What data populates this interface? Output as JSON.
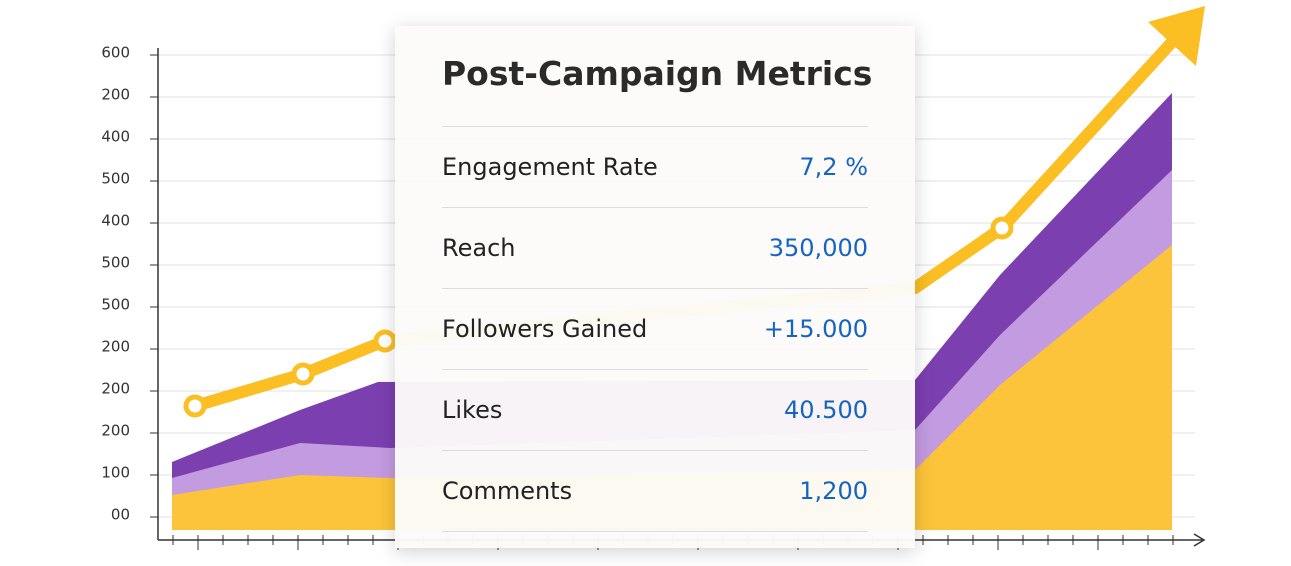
{
  "axis": {
    "y_labels": [
      "600",
      "200",
      "400",
      "500",
      "400",
      "500",
      "500",
      "200",
      "200",
      "200",
      "100",
      "00"
    ]
  },
  "card": {
    "title": "Post-Campaign Metrics",
    "rows": [
      {
        "label": "Engagement Rate",
        "value": "7,2 %"
      },
      {
        "label": "Reach",
        "value": "350,000"
      },
      {
        "label": "Followers Gained",
        "value": "+15.000"
      },
      {
        "label": "Likes",
        "value": "40.500"
      },
      {
        "label": "Comments",
        "value": "1,200"
      }
    ]
  }
}
